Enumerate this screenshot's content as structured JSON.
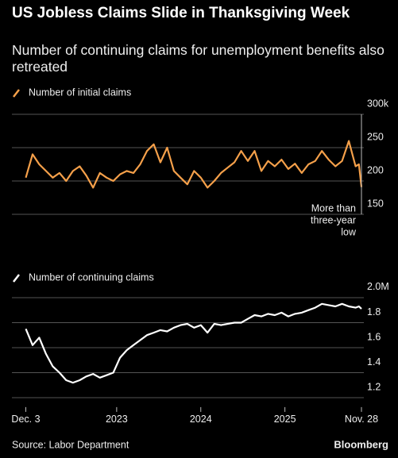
{
  "title": "US Jobless Claims Slide in Thanksgiving Week",
  "subtitle": "Number of continuing claims for unemployment benefits also retreated",
  "source": "Source: Labor Department",
  "brand": "Bloomberg",
  "chart_data": [
    {
      "type": "line",
      "annotation": [
        "More than",
        "three-year",
        "low"
      ],
      "x": [
        2021.92,
        2022.0,
        2022.08,
        2022.16,
        2022.24,
        2022.32,
        2022.4,
        2022.48,
        2022.56,
        2022.64,
        2022.72,
        2022.8,
        2022.88,
        2022.96,
        2023.04,
        2023.12,
        2023.2,
        2023.28,
        2023.36,
        2023.44,
        2023.52,
        2023.6,
        2023.68,
        2023.76,
        2023.84,
        2023.92,
        2024.0,
        2024.08,
        2024.16,
        2024.24,
        2024.32,
        2024.4,
        2024.48,
        2024.56,
        2024.64,
        2024.72,
        2024.8,
        2024.88,
        2024.96,
        2025.04,
        2025.12,
        2025.2,
        2025.28,
        2025.36,
        2025.44,
        2025.52,
        2025.6,
        2025.68,
        2025.76,
        2025.84,
        2025.88,
        2025.91
      ],
      "xlim": [
        2021.92,
        2025.91
      ],
      "series": [
        {
          "name": "Number of initial claims",
          "color": "#f5a04a",
          "values": [
            205,
            240,
            225,
            215,
            205,
            212,
            200,
            215,
            222,
            208,
            190,
            212,
            205,
            200,
            210,
            215,
            212,
            225,
            245,
            255,
            228,
            250,
            215,
            205,
            195,
            215,
            205,
            190,
            200,
            212,
            220,
            228,
            245,
            230,
            245,
            215,
            230,
            222,
            232,
            218,
            226,
            212,
            225,
            230,
            245,
            232,
            222,
            230,
            260,
            222,
            225,
            191
          ]
        }
      ],
      "ylim": [
        130,
        310
      ],
      "yticks": [
        150,
        200,
        250,
        {
          "value": 300,
          "label": "300k"
        }
      ],
      "grid": true
    },
    {
      "type": "line",
      "x": [
        2021.92,
        2022.0,
        2022.08,
        2022.16,
        2022.24,
        2022.32,
        2022.4,
        2022.48,
        2022.56,
        2022.64,
        2022.72,
        2022.8,
        2022.88,
        2022.96,
        2023.04,
        2023.12,
        2023.2,
        2023.28,
        2023.36,
        2023.44,
        2023.52,
        2023.6,
        2023.68,
        2023.76,
        2023.84,
        2023.92,
        2024.0,
        2024.08,
        2024.16,
        2024.24,
        2024.32,
        2024.4,
        2024.48,
        2024.56,
        2024.64,
        2024.72,
        2024.8,
        2024.88,
        2024.96,
        2025.04,
        2025.12,
        2025.2,
        2025.28,
        2025.36,
        2025.44,
        2025.52,
        2025.6,
        2025.68,
        2025.76,
        2025.84,
        2025.88,
        2025.91
      ],
      "xlim": [
        2021.92,
        2025.91
      ],
      "xticks": [
        {
          "value": 2021.92,
          "label": "Dec. 3"
        },
        2023,
        2024,
        2025,
        {
          "value": 2025.91,
          "label": "Nov. 28"
        }
      ],
      "series": [
        {
          "name": "Number of continuing claims",
          "color": "#ffffff",
          "values": [
            1.75,
            1.62,
            1.68,
            1.55,
            1.45,
            1.4,
            1.34,
            1.32,
            1.34,
            1.37,
            1.39,
            1.36,
            1.38,
            1.4,
            1.52,
            1.58,
            1.62,
            1.66,
            1.7,
            1.72,
            1.74,
            1.73,
            1.76,
            1.78,
            1.79,
            1.76,
            1.78,
            1.72,
            1.79,
            1.78,
            1.79,
            1.8,
            1.8,
            1.83,
            1.86,
            1.85,
            1.87,
            1.86,
            1.88,
            1.85,
            1.87,
            1.88,
            1.9,
            1.92,
            1.95,
            1.94,
            1.93,
            1.95,
            1.93,
            1.92,
            1.93,
            1.91
          ]
        }
      ],
      "ylim": [
        1.15,
        2.02
      ],
      "yticks": [
        1.2,
        1.4,
        1.6,
        1.8,
        {
          "value": 2.0,
          "label": "2.0M"
        }
      ],
      "grid": true
    }
  ]
}
